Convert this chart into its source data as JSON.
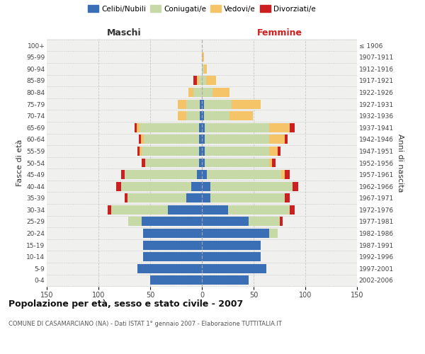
{
  "age_groups": [
    "0-4",
    "5-9",
    "10-14",
    "15-19",
    "20-24",
    "25-29",
    "30-34",
    "35-39",
    "40-44",
    "45-49",
    "50-54",
    "55-59",
    "60-64",
    "65-69",
    "70-74",
    "75-79",
    "80-84",
    "85-89",
    "90-94",
    "95-99",
    "100+"
  ],
  "birth_years": [
    "2002-2006",
    "1997-2001",
    "1992-1996",
    "1987-1991",
    "1982-1986",
    "1977-1981",
    "1972-1976",
    "1967-1971",
    "1962-1966",
    "1957-1961",
    "1952-1956",
    "1947-1951",
    "1942-1946",
    "1937-1941",
    "1932-1936",
    "1927-1931",
    "1922-1926",
    "1917-1921",
    "1912-1916",
    "1907-1911",
    "≤ 1906"
  ],
  "males": {
    "celibi": [
      50,
      62,
      57,
      57,
      57,
      58,
      33,
      15,
      10,
      5,
      3,
      3,
      3,
      3,
      2,
      2,
      0,
      0,
      0,
      0,
      0
    ],
    "coniugati": [
      0,
      0,
      0,
      0,
      0,
      13,
      55,
      57,
      68,
      70,
      52,
      55,
      53,
      57,
      13,
      13,
      8,
      3,
      0,
      0,
      0
    ],
    "vedovi": [
      0,
      0,
      0,
      0,
      0,
      0,
      0,
      0,
      0,
      0,
      0,
      2,
      3,
      3,
      8,
      8,
      5,
      2,
      0,
      0,
      0
    ],
    "divorziati": [
      0,
      0,
      0,
      0,
      0,
      0,
      3,
      3,
      5,
      3,
      3,
      2,
      2,
      2,
      0,
      0,
      0,
      3,
      0,
      0,
      0
    ]
  },
  "females": {
    "nubili": [
      45,
      62,
      57,
      57,
      65,
      45,
      25,
      8,
      8,
      5,
      3,
      3,
      3,
      3,
      2,
      2,
      0,
      0,
      0,
      0,
      0
    ],
    "coniugate": [
      0,
      0,
      0,
      0,
      8,
      30,
      60,
      72,
      80,
      72,
      62,
      62,
      62,
      62,
      25,
      27,
      10,
      4,
      2,
      0,
      0
    ],
    "vedove": [
      0,
      0,
      0,
      0,
      0,
      0,
      0,
      0,
      0,
      3,
      3,
      8,
      15,
      20,
      22,
      28,
      17,
      10,
      3,
      2,
      0
    ],
    "divorziate": [
      0,
      0,
      0,
      0,
      0,
      3,
      5,
      5,
      5,
      5,
      3,
      3,
      3,
      5,
      0,
      0,
      0,
      0,
      0,
      0,
      0
    ]
  },
  "colors": {
    "celibi": "#3a6eb5",
    "coniugati": "#c8d9a8",
    "vedovi": "#f5c469",
    "divorziati": "#cc1f1f"
  },
  "xlim": 150,
  "title": "Popolazione per età, sesso e stato civile - 2007",
  "subtitle": "COMUNE DI CASAMARCIANO (NA) - Dati ISTAT 1° gennaio 2007 - Elaborazione TUTTITALIA.IT",
  "xlabel_left": "Maschi",
  "xlabel_right": "Femmine",
  "ylabel_left": "Fasce di età",
  "ylabel_right": "Anni di nascita",
  "bg_color": "#ffffff",
  "plot_bg": "#f0f0ee",
  "grid_color": "#c8c8c8",
  "bar_height": 0.78
}
